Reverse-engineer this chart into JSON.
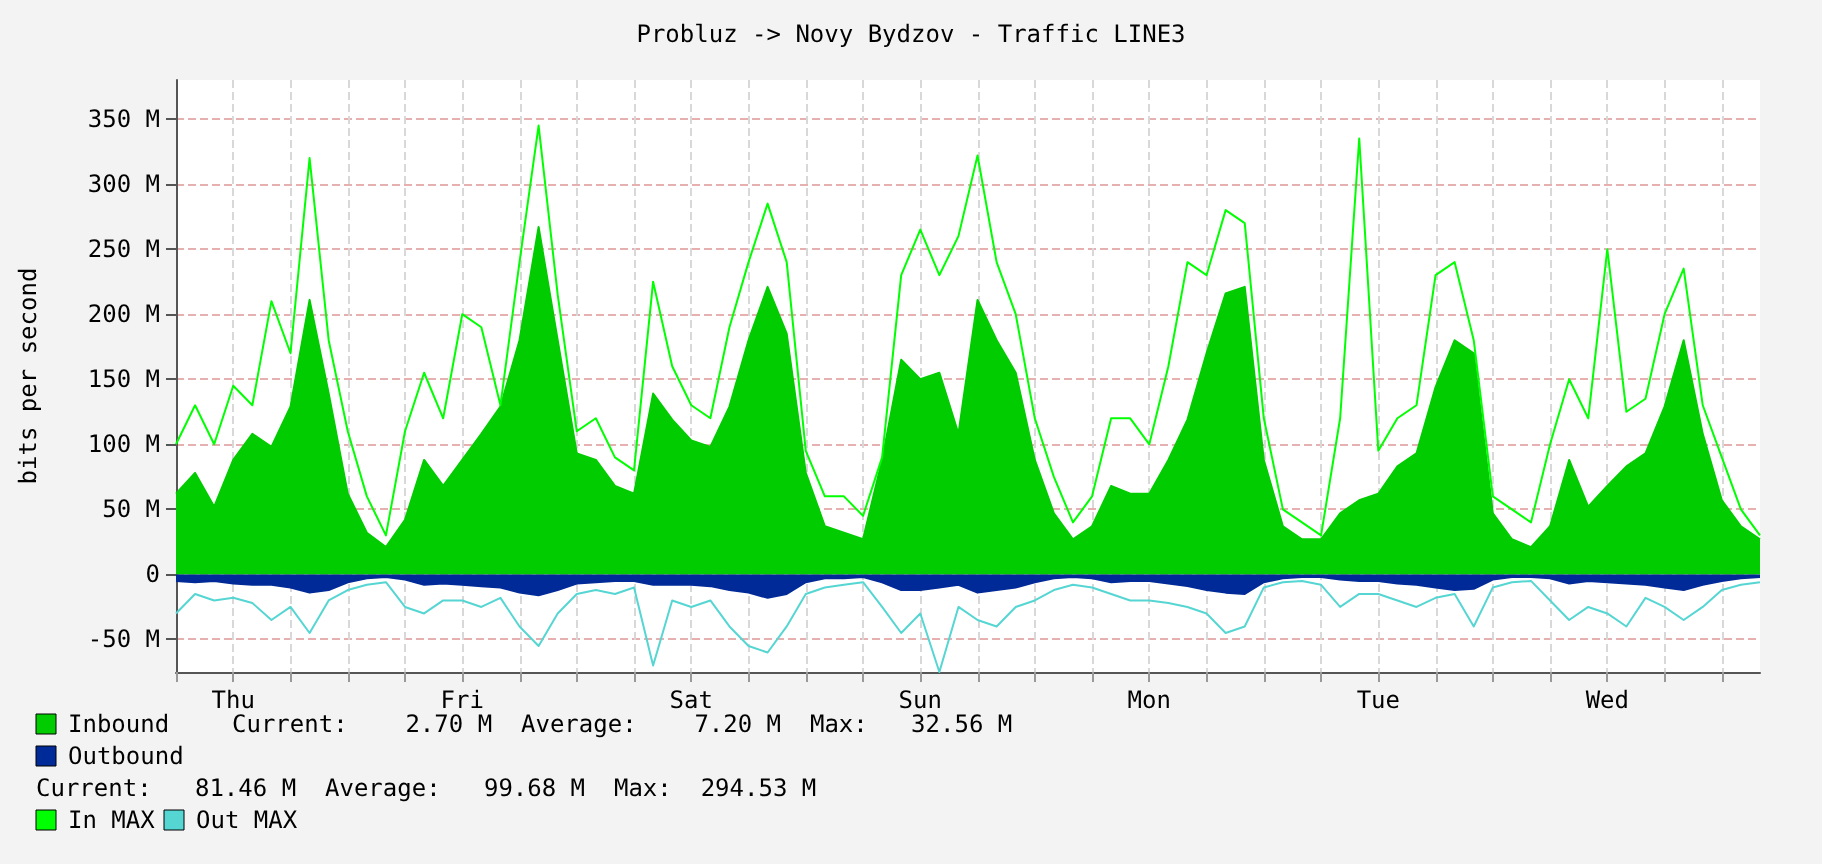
{
  "chart_data": {
    "type": "area",
    "title": "Probluz -> Novy Bydzov - Traffic LINE3",
    "ylabel": "bits per second",
    "categories": [
      null,
      null,
      null,
      "Thu",
      null,
      null,
      null,
      null,
      null,
      null,
      null,
      null,
      null,
      null,
      null,
      "Fri",
      null,
      null,
      null,
      null,
      null,
      null,
      null,
      null,
      null,
      null,
      null,
      "Sat",
      null,
      null,
      null,
      null,
      null,
      null,
      null,
      null,
      null,
      null,
      null,
      "Sun",
      null,
      null,
      null,
      null,
      null,
      null,
      null,
      null,
      null,
      null,
      null,
      "Mon",
      null,
      null,
      null,
      null,
      null,
      null,
      null,
      null,
      null,
      null,
      null,
      "Tue",
      null,
      null,
      null,
      null,
      null,
      null,
      null,
      null,
      null,
      null,
      null,
      "Wed",
      null,
      null,
      null,
      null,
      null,
      null,
      null,
      null
    ],
    "ylim": [
      -75,
      380
    ],
    "yticks": [
      {
        "value": -50,
        "label": "-50 M"
      },
      {
        "value": 0,
        "label": "0"
      },
      {
        "value": 50,
        "label": "50 M"
      },
      {
        "value": 100,
        "label": "100 M"
      },
      {
        "value": 150,
        "label": "150 M"
      },
      {
        "value": 200,
        "label": "200 M"
      },
      {
        "value": 250,
        "label": "250 M"
      },
      {
        "value": 300,
        "label": "300 M"
      },
      {
        "value": 350,
        "label": "350 M"
      }
    ],
    "series": [
      {
        "name": "Inbound",
        "color": "#00cc00",
        "values": [
          62,
          78,
          52,
          88,
          108,
          98,
          129,
          211,
          139,
          62,
          32,
          21,
          42,
          88,
          68,
          88,
          108,
          129,
          180,
          267,
          180,
          93,
          88,
          68,
          62,
          139,
          119,
          103,
          98,
          129,
          180,
          221,
          185,
          78,
          37,
          32,
          27,
          88,
          165,
          150,
          155,
          108,
          211,
          180,
          155,
          88,
          47,
          27,
          37,
          68,
          62,
          62,
          88,
          119,
          170,
          216,
          221,
          88,
          37,
          27,
          27,
          47,
          57,
          62,
          83,
          93,
          144,
          180,
          170,
          47,
          27,
          21,
          37,
          88,
          52,
          68,
          83,
          93,
          129,
          180,
          108,
          57,
          37,
          27
        ]
      },
      {
        "name": "Outbound",
        "color": "#002a97",
        "values": [
          -5,
          -6,
          -5,
          -7,
          -8,
          -8,
          -10,
          -14,
          -12,
          -6,
          -3,
          -2,
          -4,
          -8,
          -7,
          -8,
          -9,
          -10,
          -14,
          -16,
          -12,
          -7,
          -6,
          -5,
          -5,
          -8,
          -8,
          -8,
          -9,
          -12,
          -14,
          -18,
          -15,
          -6,
          -3,
          -3,
          -2,
          -6,
          -12,
          -12,
          -10,
          -8,
          -14,
          -12,
          -10,
          -6,
          -3,
          -2,
          -3,
          -6,
          -5,
          -5,
          -7,
          -9,
          -12,
          -14,
          -15,
          -6,
          -3,
          -2,
          -2,
          -4,
          -5,
          -5,
          -7,
          -8,
          -10,
          -12,
          -11,
          -4,
          -2,
          -2,
          -3,
          -7,
          -5,
          -6,
          -7,
          -8,
          -10,
          -12,
          -8,
          -5,
          -3,
          -2
        ]
      },
      {
        "name": "In MAX",
        "type": "line",
        "color": "#00ff00",
        "values": [
          100,
          130,
          100,
          145,
          130,
          210,
          170,
          320,
          180,
          110,
          60,
          30,
          110,
          155,
          120,
          200,
          190,
          130,
          240,
          345,
          215,
          110,
          120,
          90,
          80,
          225,
          160,
          130,
          120,
          190,
          240,
          285,
          240,
          95,
          60,
          60,
          45,
          90,
          230,
          265,
          230,
          260,
          322,
          240,
          200,
          120,
          75,
          40,
          60,
          120,
          120,
          100,
          160,
          240,
          230,
          280,
          270,
          120,
          50,
          40,
          30,
          120,
          335,
          95,
          120,
          130,
          230,
          240,
          180,
          60,
          50,
          40,
          100,
          150,
          120,
          250,
          125,
          135,
          200,
          235,
          130,
          90,
          50,
          30
        ]
      },
      {
        "name": "Out MAX",
        "type": "line",
        "color": "#55d6d3",
        "values": [
          -30,
          -15,
          -20,
          -18,
          -22,
          -35,
          -25,
          -45,
          -20,
          -12,
          -8,
          -6,
          -25,
          -30,
          -20,
          -20,
          -25,
          -18,
          -40,
          -55,
          -30,
          -15,
          -12,
          -15,
          -10,
          -70,
          -20,
          -25,
          -20,
          -40,
          -55,
          -60,
          -40,
          -15,
          -10,
          -8,
          -6,
          -25,
          -45,
          -30,
          -75,
          -25,
          -35,
          -40,
          -25,
          -20,
          -12,
          -8,
          -10,
          -15,
          -20,
          -20,
          -22,
          -25,
          -30,
          -45,
          -40,
          -10,
          -6,
          -5,
          -8,
          -25,
          -15,
          -15,
          -20,
          -25,
          -18,
          -15,
          -40,
          -10,
          -6,
          -5,
          -20,
          -35,
          -25,
          -30,
          -40,
          -18,
          -25,
          -35,
          -25,
          -12,
          -8,
          -6
        ]
      }
    ],
    "annotations": [
      "Current:    2.70 M  Average:    7.20 M  Max:   32.56 M",
      "Current:   81.46 M  Average:   99.68 M  Max:  294.53 M"
    ],
    "grid": true,
    "legend": "bottom",
    "marker": "none",
    "line_style": "solid"
  }
}
